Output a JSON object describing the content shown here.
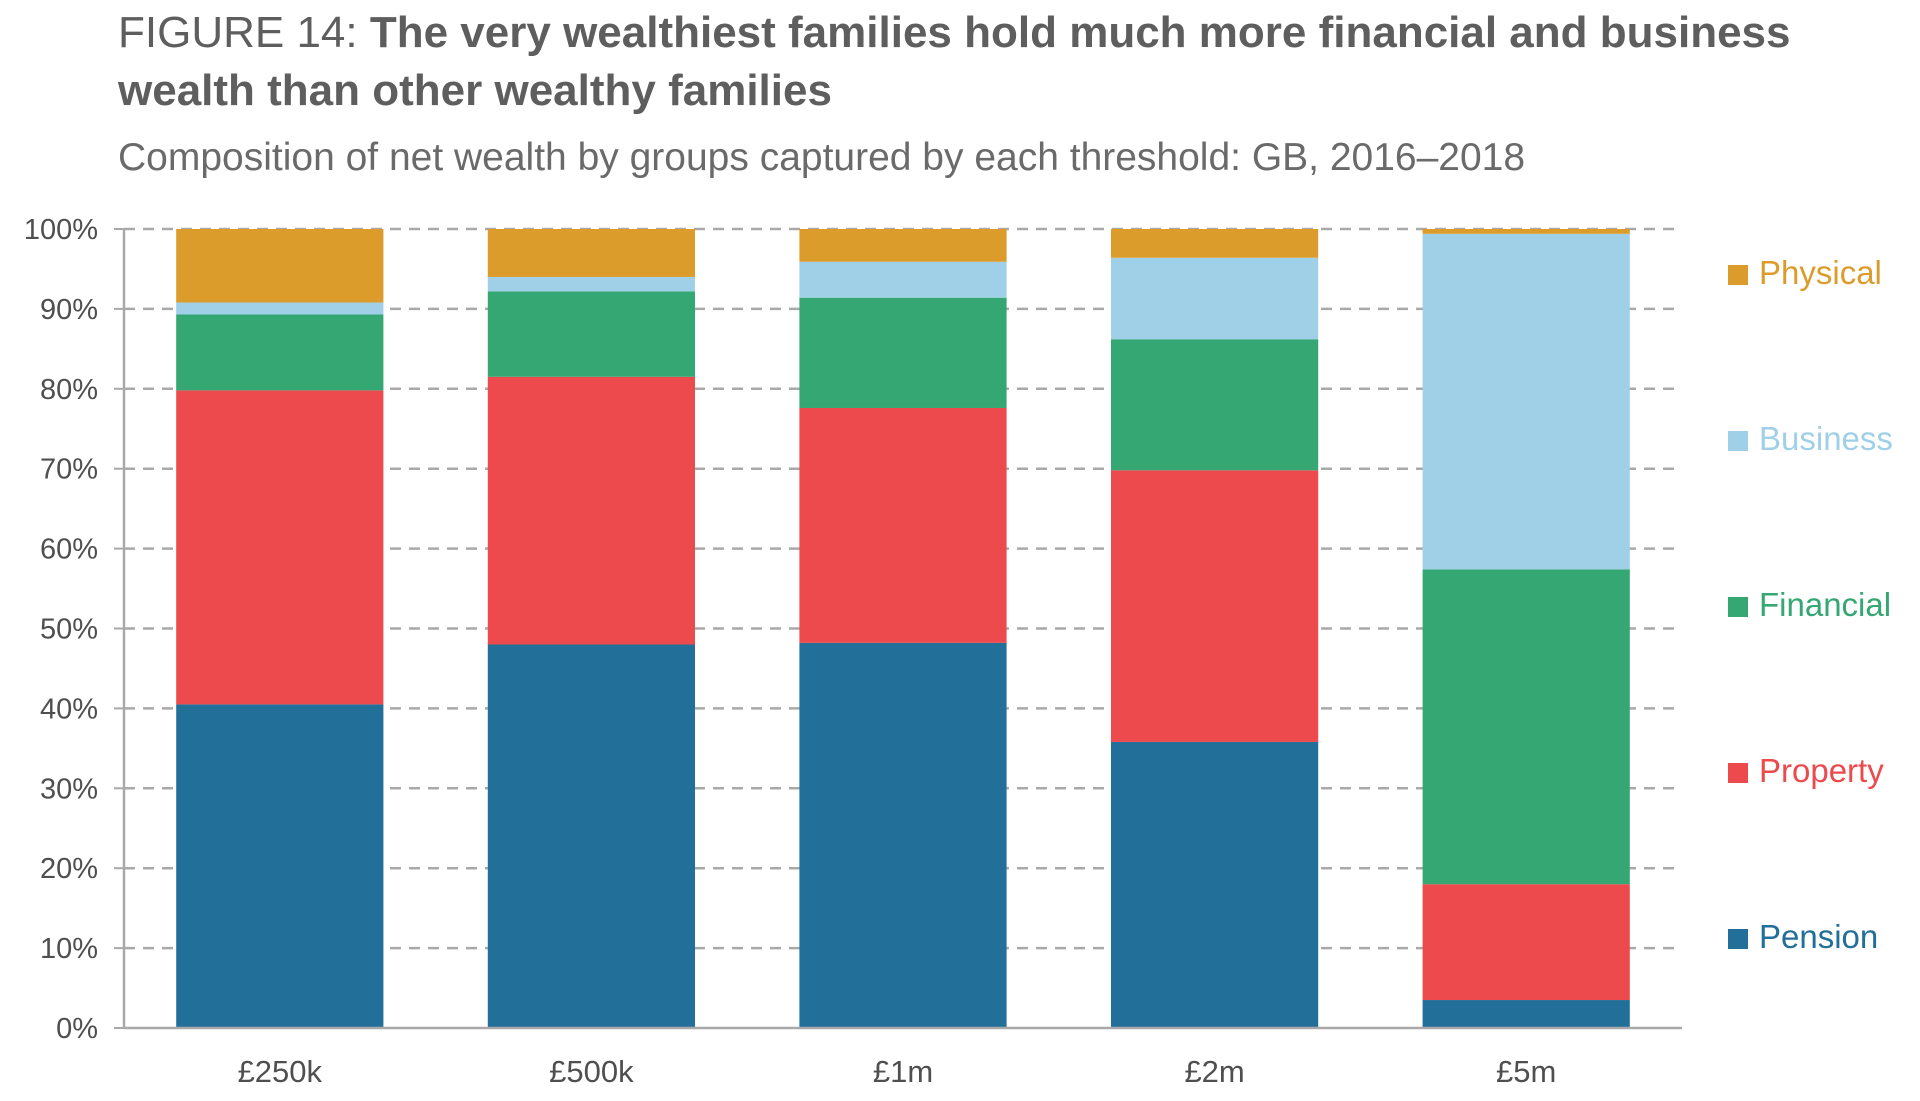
{
  "header": {
    "figure_label": "FIGURE 14:",
    "title": "The very wealthiest families hold much more financial and business wealth than other wealthy families",
    "subtitle": "Composition of net wealth by groups captured by each threshold: GB, 2016–2018"
  },
  "chart_data": {
    "type": "bar",
    "stacked": true,
    "categories": [
      "£250k",
      "£500k",
      "£1m",
      "£2m",
      "£5m"
    ],
    "series": [
      {
        "name": "Pension",
        "color": "#22709a",
        "values": [
          40.5,
          48.0,
          48.2,
          35.8,
          3.5
        ]
      },
      {
        "name": "Property",
        "color": "#ec4a4d",
        "values": [
          39.3,
          33.5,
          29.4,
          34.0,
          14.5
        ]
      },
      {
        "name": "Financial",
        "color": "#34a772",
        "values": [
          9.5,
          10.7,
          13.8,
          16.4,
          39.4
        ]
      },
      {
        "name": "Business",
        "color": "#9fd0e8",
        "values": [
          1.5,
          1.8,
          4.5,
          10.2,
          42.0
        ]
      },
      {
        "name": "Physical",
        "color": "#dc9c2b",
        "values": [
          9.2,
          6.0,
          4.1,
          3.6,
          0.6
        ]
      }
    ],
    "yticks": [
      "0%",
      "10%",
      "20%",
      "30%",
      "40%",
      "50%",
      "60%",
      "70%",
      "80%",
      "90%",
      "100%"
    ],
    "ylim": [
      0,
      100
    ],
    "grid": "dashed horizontal",
    "legend_order": [
      "Physical",
      "Business",
      "Financial",
      "Property",
      "Pension"
    ],
    "legend_position": "right"
  }
}
